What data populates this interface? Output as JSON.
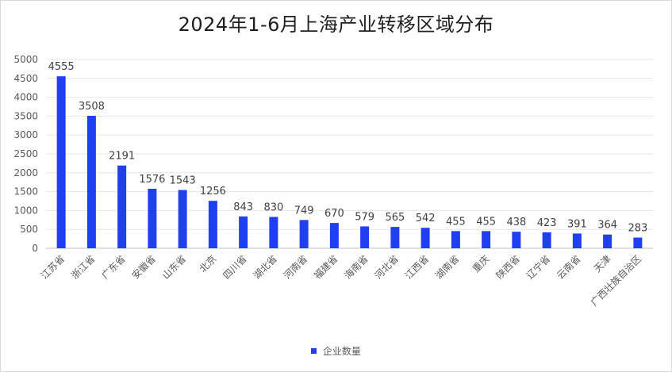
{
  "chart_data": {
    "type": "bar",
    "title": "2024年1-6月上海产业转移区域分布",
    "categories": [
      "江苏省",
      "浙江省",
      "广东省",
      "安徽省",
      "山东省",
      "北京",
      "四川省",
      "湖北省",
      "河南省",
      "福建省",
      "海南省",
      "河北省",
      "江西省",
      "湖南省",
      "重庆",
      "陕西省",
      "辽宁省",
      "云南省",
      "天津",
      "广西壮族自治区"
    ],
    "series": [
      {
        "name": "企业数量",
        "values": [
          4555,
          3508,
          2191,
          1576,
          1543,
          1256,
          843,
          830,
          749,
          670,
          579,
          565,
          542,
          455,
          455,
          438,
          423,
          391,
          364,
          283
        ]
      }
    ],
    "ylim": [
      0,
      5000
    ],
    "yticks": [
      0,
      500,
      1000,
      1500,
      2000,
      2500,
      3000,
      3500,
      4000,
      4500,
      5000
    ],
    "grid": true,
    "legend": "bottom",
    "bar_color": "#1f3ff0"
  }
}
